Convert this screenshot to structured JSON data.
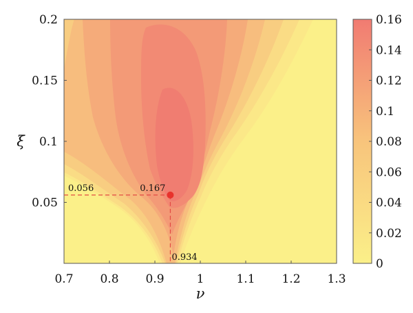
{
  "chart_data": {
    "type": "heatmap",
    "title": "",
    "xlabel": "ν",
    "ylabel": "ξ",
    "xlim": [
      0.7,
      1.3
    ],
    "ylim": [
      0,
      0.2
    ],
    "x_ticks": [
      "0.7",
      "0.8",
      "0.9",
      "1",
      "1.1",
      "1.2",
      "1.3"
    ],
    "y_ticks": [
      "0.05",
      "0.1",
      "0.15",
      "0.2"
    ],
    "colorbar": {
      "range": [
        0,
        0.16
      ],
      "ticks": [
        "0",
        "0.02",
        "0.04",
        "0.06",
        "0.08",
        "0.1",
        "0.12",
        "0.14",
        "0.16"
      ],
      "colors": [
        "#fbf089",
        "#f17b72"
      ]
    },
    "peak": {
      "x": 0.934,
      "y": 0.056,
      "value": 0.167
    },
    "annotations": {
      "x_value": "0.934",
      "y_value": "0.056",
      "peak_value": "0.167"
    },
    "marker_color": "#e8322c",
    "guide_color": "#e24a44"
  }
}
